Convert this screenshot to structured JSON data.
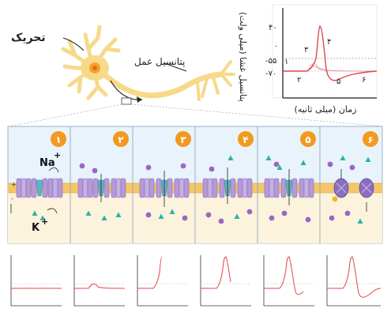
{
  "labels": {
    "stimulus": "تحریک",
    "action_potential": "پتانسیل عمل",
    "y_axis": "پتانسیل غشا (میلی ولت)",
    "x_axis": "زمان (میلی ثانیه)",
    "na_ion": "Na",
    "k_ion": "K",
    "plus": "+",
    "minus": "-"
  },
  "graph": {
    "y_ticks": [
      "۴۰",
      "۰",
      "-۵۵",
      "-۷۰"
    ],
    "phase_labels": [
      "۱",
      "۲",
      "۳",
      "۴",
      "۵",
      "۶"
    ]
  },
  "panels": [
    {
      "number": "۱"
    },
    {
      "number": "۲"
    },
    {
      "number": "۳"
    },
    {
      "number": "۴"
    },
    {
      "number": "۵"
    },
    {
      "number": "۶"
    }
  ],
  "colors": {
    "panel_bg": "#e8f3fb",
    "cytoplasm": "#fbf3dc",
    "membrane": "#f3c769",
    "channel": "#b59ad8",
    "gate": "#5fb3c8",
    "badge": "#f29a1f",
    "ion_na": "#9a67c4",
    "ion_k": "#2bb3a3",
    "trace": "#e0474c"
  }
}
